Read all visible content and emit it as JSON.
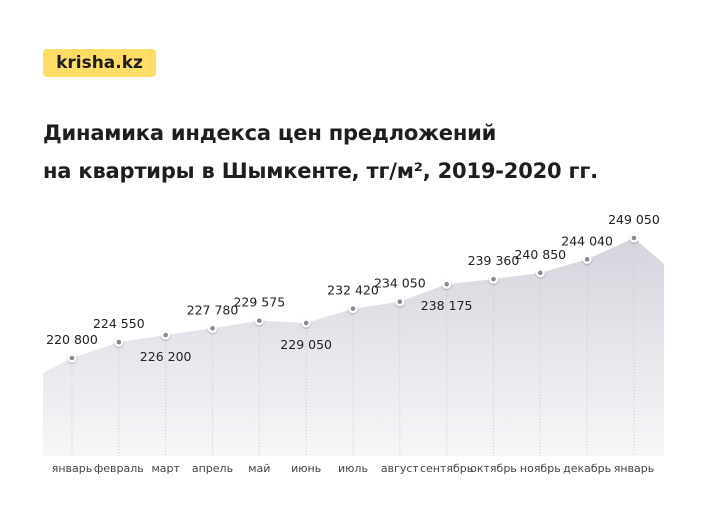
{
  "logo": {
    "text": "krisha.kz",
    "color": "#FFDD66"
  },
  "chart_data": {
    "type": "area",
    "title": [
      "Динамика индекса цен предложений",
      "на квартиры в Шымкенте, тг/м², 2019-2020 гг."
    ],
    "categories": [
      "январь",
      "февраль",
      "март",
      "апрель",
      "май",
      "июнь",
      "июль",
      "август",
      "сентябрь",
      "октябрь",
      "ноябрь",
      "декабрь",
      "январь"
    ],
    "values": [
      220800,
      224550,
      226200,
      227780,
      229575,
      229050,
      232420,
      234050,
      238175,
      239360,
      240850,
      244040,
      249050
    ],
    "data_labels": [
      "220 800",
      "224 550",
      "226 200",
      "227 780",
      "229 575",
      "229 050",
      "232 420",
      "234 050",
      "238 175",
      "239 360",
      "240 850",
      "244 040",
      "249 050"
    ],
    "label_position": [
      "above",
      "above",
      "below",
      "above",
      "above",
      "below",
      "above",
      "above",
      "below",
      "above",
      "above",
      "above",
      "above"
    ],
    "fill_color": "#D9D9E1",
    "point_color": "#8A8A94",
    "grid": "vertical dotted",
    "legend": "none"
  }
}
